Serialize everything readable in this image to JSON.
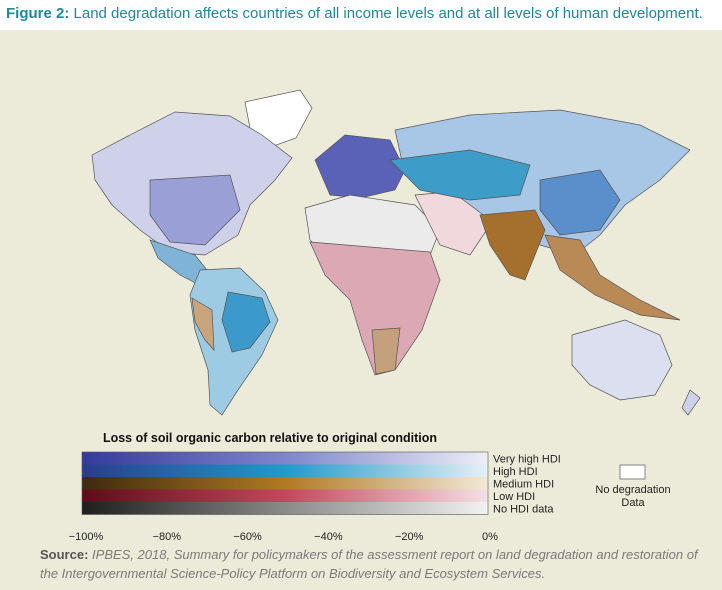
{
  "header": {
    "figure_label": "Figure 2:",
    "title": "Land degradation affects countries of all income levels and at all levels of human development."
  },
  "legend": {
    "title": "Loss of soil organic carbon relative to original condition",
    "rows": [
      {
        "label": "Very high HDI",
        "colors": [
          "#343a9a",
          "#7e86cc",
          "#eeeef6"
        ]
      },
      {
        "label": "High HDI",
        "colors": [
          "#2a3c8e",
          "#1f9bcb",
          "#e6f0f5"
        ]
      },
      {
        "label": "Medium HDI",
        "colors": [
          "#3e2a0e",
          "#b07a24",
          "#f2e8d8"
        ]
      },
      {
        "label": "Low HDI",
        "colors": [
          "#5e0c1a",
          "#c4475c",
          "#f4e0e5"
        ]
      },
      {
        "label": "No HDI data",
        "colors": [
          "#1e1e1e",
          "#8a8a8a",
          "#f2f2f2"
        ]
      }
    ],
    "ticks": [
      "−100%",
      "−80%",
      "−60%",
      "−40%",
      "−20%",
      "0%"
    ],
    "no_degradation": [
      "No degradation",
      "Data"
    ]
  },
  "source": {
    "label": "Source:",
    "text": "IPBES, 2018, Summary for policymakers of the assessment report on land degradation and restoration of the Intergovernmental Science-Policy Platform on Biodiversity and Ecosystem Services."
  }
}
